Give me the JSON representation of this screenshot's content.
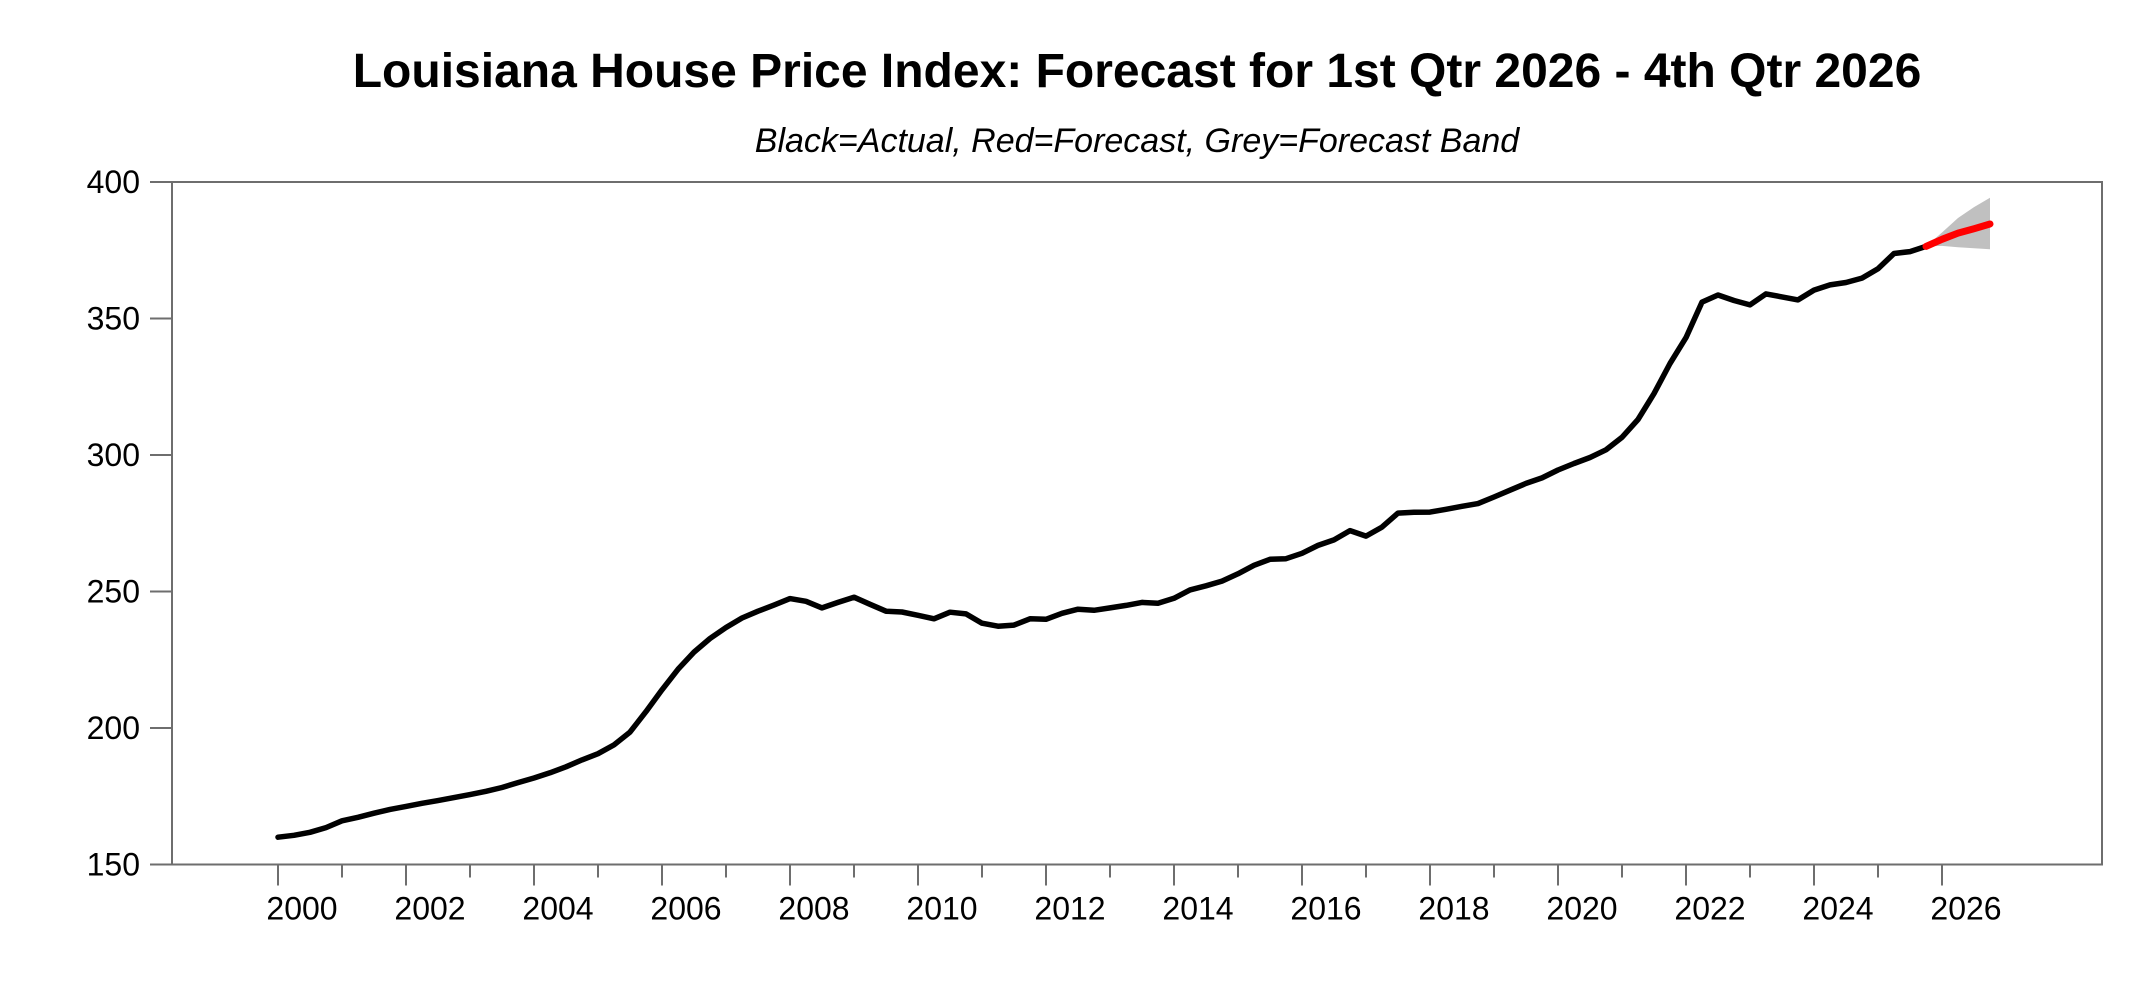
{
  "title": "Louisiana House Price Index: Forecast for 1st Qtr 2026 - 4th Qtr 2026",
  "subtitle": "Black=Actual, Red=Forecast, Grey=Forecast Band",
  "chart_data": {
    "type": "line",
    "title": "Louisiana House Price Index: Forecast for 1st Qtr 2026 - 4th Qtr 2026",
    "subtitle": "Black=Actual, Red=Forecast, Grey=Forecast Band",
    "xlabel": "",
    "ylabel": "",
    "grid": false,
    "legend_position": "none",
    "x_axis": {
      "range_years": [
        1998.34,
        2028.5
      ],
      "major_tick_years": [
        2000,
        2002,
        2004,
        2006,
        2008,
        2010,
        2012,
        2014,
        2016,
        2018,
        2020,
        2022,
        2024,
        2026
      ],
      "minor_tick_years": [
        2001,
        2003,
        2005,
        2007,
        2009,
        2011,
        2013,
        2015,
        2017,
        2019,
        2021,
        2023,
        2025
      ],
      "tick_labels": [
        "2000",
        "2002",
        "2004",
        "2006",
        "2008",
        "2010",
        "2012",
        "2014",
        "2016",
        "2018",
        "2020",
        "2022",
        "2024",
        "2026"
      ]
    },
    "y_axis": {
      "range": [
        150,
        400
      ],
      "ticks": [
        150,
        200,
        250,
        300,
        350,
        400
      ],
      "tick_labels": [
        "150",
        "200",
        "250",
        "300",
        "350",
        "400"
      ]
    },
    "colors": {
      "actual": "#000000",
      "forecast": "#ff0000",
      "band": "#c0c0c0",
      "axis": "#6e6e6e",
      "text": "#000000",
      "background": "#ffffff"
    },
    "series": [
      {
        "name": "Actual",
        "role": "actual",
        "frequency": "quarterly",
        "start_year": 2000,
        "start_quarter": 1,
        "values": [
          160.0,
          160.7,
          161.8,
          163.5,
          166.0,
          167.3,
          168.8,
          170.2,
          171.3,
          172.4,
          173.4,
          174.5,
          175.6,
          176.8,
          178.2,
          180.0,
          181.7,
          183.6,
          185.8,
          188.3,
          190.6,
          193.8,
          198.5,
          206.0,
          214.0,
          221.5,
          227.8,
          232.8,
          236.8,
          240.3,
          242.8,
          245.0,
          247.4,
          246.4,
          244.0,
          246.0,
          247.9,
          245.3,
          242.8,
          242.5,
          241.3,
          240.0,
          242.4,
          241.8,
          238.4,
          237.3,
          237.7,
          240.0,
          239.8,
          242.0,
          243.5,
          243.1,
          244.0,
          244.9,
          246.0,
          245.7,
          247.5,
          250.6,
          252.1,
          253.8,
          256.5,
          259.6,
          261.8,
          262.0,
          264.0,
          266.9,
          268.9,
          272.3,
          270.3,
          273.6,
          278.7,
          279.0,
          279.1,
          280.1,
          281.2,
          282.2,
          284.6,
          287.1,
          289.6,
          291.6,
          294.5,
          296.9,
          299.1,
          301.9,
          306.5,
          313.0,
          322.5,
          333.5,
          343.0,
          356.0,
          358.6,
          356.6,
          355.0,
          359.0,
          357.9,
          356.8,
          360.4,
          362.3,
          363.2,
          364.8,
          368.2,
          373.8,
          374.5,
          376.4
        ]
      },
      {
        "name": "Forecast",
        "role": "forecast",
        "frequency": "quarterly",
        "start_year": 2025,
        "start_quarter": 4,
        "values": [
          376.4,
          379.0,
          381.3,
          382.9,
          384.6
        ]
      },
      {
        "name": "Forecast Band",
        "role": "band",
        "frequency": "quarterly",
        "start_year": 2025,
        "start_quarter": 4,
        "upper": [
          376.4,
          381.5,
          386.8,
          390.8,
          394.2
        ],
        "lower": [
          376.4,
          376.6,
          376.1,
          375.7,
          375.4
        ]
      }
    ]
  }
}
